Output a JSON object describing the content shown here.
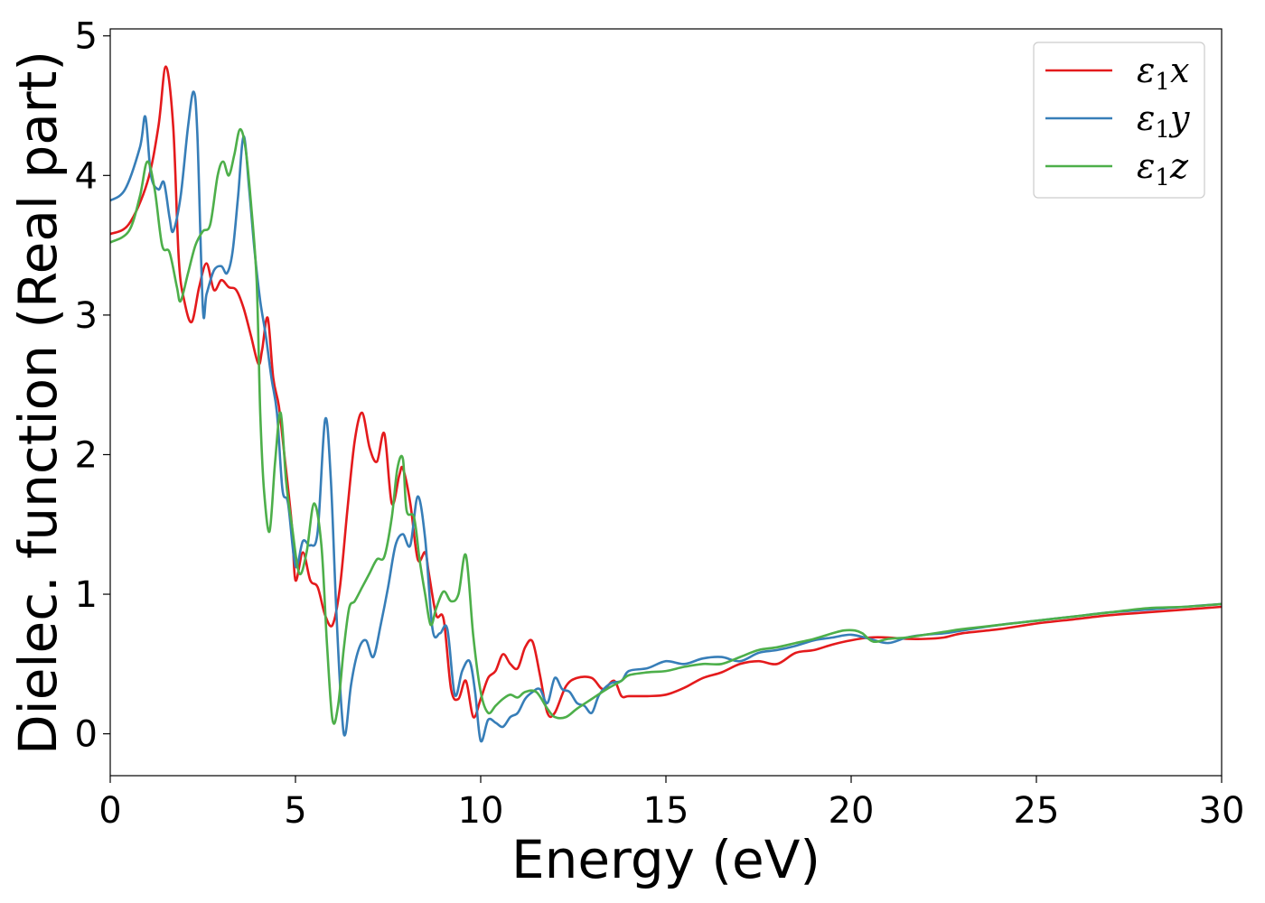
{
  "chart_data": {
    "type": "line",
    "xlabel": "Energy (eV)",
    "ylabel": "Dielec. function (Real part)",
    "xlim": [
      0,
      30
    ],
    "ylim": [
      -0.3,
      5.05
    ],
    "xticks": [
      0,
      5,
      10,
      15,
      20,
      25,
      30
    ],
    "yticks": [
      0,
      1,
      2,
      3,
      4,
      5
    ],
    "grid": false,
    "legend_position": "top-right",
    "series": [
      {
        "name": "ε1x",
        "legend": {
          "sym": "ε",
          "sub": "1",
          "var": "x"
        },
        "color": "#e41a1c",
        "x": [
          0,
          0.5,
          1.0,
          1.3,
          1.5,
          1.7,
          1.85,
          2.0,
          2.2,
          2.4,
          2.6,
          2.8,
          3.0,
          3.2,
          3.4,
          3.6,
          3.8,
          4.0,
          4.1,
          4.25,
          4.4,
          4.55,
          4.7,
          4.9,
          5.0,
          5.2,
          5.4,
          5.6,
          5.8,
          6.0,
          6.2,
          6.4,
          6.6,
          6.8,
          7.0,
          7.2,
          7.4,
          7.6,
          7.8,
          7.9,
          8.1,
          8.3,
          8.5,
          8.6,
          8.8,
          9.0,
          9.2,
          9.4,
          9.6,
          9.8,
          10.0,
          10.2,
          10.4,
          10.6,
          10.8,
          11.0,
          11.2,
          11.4,
          11.6,
          11.8,
          12.0,
          12.3,
          12.6,
          13.0,
          13.3,
          13.6,
          13.8,
          14.0,
          14.5,
          15.0,
          15.5,
          16.0,
          16.5,
          17.0,
          17.5,
          18.0,
          18.5,
          19.0,
          19.5,
          20.0,
          20.5,
          21.0,
          21.5,
          22.0,
          22.5,
          23.0,
          24.0,
          25.0,
          26.0,
          27.0,
          28.0,
          29.0,
          30.0
        ],
        "values": [
          3.58,
          3.65,
          3.95,
          4.35,
          4.78,
          4.35,
          3.4,
          3.1,
          2.95,
          3.2,
          3.37,
          3.18,
          3.25,
          3.2,
          3.18,
          3.05,
          2.85,
          2.65,
          2.75,
          2.98,
          2.55,
          2.35,
          2.0,
          1.5,
          1.1,
          1.3,
          1.1,
          1.05,
          0.85,
          0.78,
          1.05,
          1.6,
          2.1,
          2.3,
          2.05,
          1.95,
          2.15,
          1.65,
          1.85,
          1.9,
          1.65,
          1.25,
          1.3,
          1.15,
          0.85,
          0.82,
          0.32,
          0.25,
          0.38,
          0.12,
          0.25,
          0.4,
          0.45,
          0.57,
          0.5,
          0.47,
          0.62,
          0.66,
          0.42,
          0.15,
          0.15,
          0.34,
          0.4,
          0.4,
          0.32,
          0.38,
          0.27,
          0.27,
          0.27,
          0.28,
          0.33,
          0.4,
          0.44,
          0.5,
          0.52,
          0.5,
          0.58,
          0.6,
          0.64,
          0.67,
          0.69,
          0.69,
          0.68,
          0.68,
          0.69,
          0.72,
          0.75,
          0.79,
          0.82,
          0.85,
          0.87,
          0.89,
          0.91
        ]
      },
      {
        "name": "ε1y",
        "legend": {
          "sym": "ε",
          "sub": "1",
          "var": "y"
        },
        "color": "#377eb8",
        "x": [
          0,
          0.4,
          0.8,
          0.95,
          1.1,
          1.3,
          1.45,
          1.6,
          1.7,
          1.9,
          2.1,
          2.25,
          2.35,
          2.5,
          2.6,
          2.8,
          3.0,
          3.15,
          3.3,
          3.45,
          3.6,
          3.75,
          3.9,
          4.05,
          4.2,
          4.35,
          4.5,
          4.65,
          4.8,
          5.0,
          5.2,
          5.4,
          5.6,
          5.8,
          5.95,
          6.1,
          6.25,
          6.35,
          6.5,
          6.7,
          6.9,
          7.1,
          7.3,
          7.5,
          7.7,
          7.9,
          8.1,
          8.3,
          8.5,
          8.7,
          8.9,
          9.1,
          9.3,
          9.5,
          9.7,
          9.85,
          10.0,
          10.2,
          10.4,
          10.6,
          10.8,
          11.0,
          11.2,
          11.4,
          11.6,
          11.8,
          12.0,
          12.2,
          12.4,
          12.6,
          12.8,
          13.0,
          13.2,
          13.5,
          13.8,
          14.0,
          14.5,
          15.0,
          15.5,
          16.0,
          16.5,
          17.0,
          17.5,
          18.0,
          18.5,
          19.0,
          19.5,
          20.0,
          20.5,
          21.0,
          21.5,
          22.0,
          22.5,
          23.0,
          24.0,
          25.0,
          26.0,
          27.0,
          28.0,
          29.0,
          30.0
        ],
        "values": [
          3.82,
          3.9,
          4.2,
          4.42,
          4.0,
          3.9,
          3.95,
          3.7,
          3.6,
          3.85,
          4.35,
          4.6,
          4.3,
          3.05,
          3.15,
          3.32,
          3.35,
          3.3,
          3.45,
          3.85,
          4.28,
          3.9,
          3.45,
          3.1,
          2.85,
          2.55,
          2.3,
          1.75,
          1.65,
          1.2,
          1.38,
          1.35,
          1.45,
          2.25,
          1.85,
          0.9,
          0.15,
          0.0,
          0.35,
          0.6,
          0.67,
          0.55,
          0.78,
          1.05,
          1.35,
          1.43,
          1.35,
          1.7,
          1.4,
          0.75,
          0.72,
          0.75,
          0.28,
          0.45,
          0.52,
          0.3,
          -0.05,
          0.1,
          0.08,
          0.05,
          0.12,
          0.15,
          0.25,
          0.3,
          0.32,
          0.22,
          0.4,
          0.32,
          0.3,
          0.22,
          0.2,
          0.15,
          0.28,
          0.36,
          0.38,
          0.45,
          0.47,
          0.52,
          0.5,
          0.54,
          0.55,
          0.52,
          0.58,
          0.6,
          0.63,
          0.67,
          0.69,
          0.71,
          0.68,
          0.65,
          0.69,
          0.71,
          0.72,
          0.74,
          0.78,
          0.81,
          0.84,
          0.87,
          0.89,
          0.91,
          0.93
        ]
      },
      {
        "name": "ε1z",
        "legend": {
          "sym": "ε",
          "sub": "1",
          "var": "z"
        },
        "color": "#4daf4a",
        "x": [
          0,
          0.5,
          0.8,
          1.0,
          1.2,
          1.4,
          1.6,
          1.8,
          1.9,
          2.1,
          2.3,
          2.5,
          2.7,
          2.9,
          3.05,
          3.2,
          3.35,
          3.5,
          3.65,
          3.8,
          3.95,
          4.05,
          4.15,
          4.3,
          4.45,
          4.6,
          4.75,
          4.9,
          5.1,
          5.3,
          5.5,
          5.7,
          5.85,
          6.0,
          6.15,
          6.3,
          6.45,
          6.6,
          6.8,
          7.0,
          7.2,
          7.4,
          7.6,
          7.75,
          7.9,
          8.0,
          8.2,
          8.35,
          8.5,
          8.65,
          8.8,
          9.0,
          9.2,
          9.4,
          9.6,
          9.8,
          10.0,
          10.2,
          10.4,
          10.6,
          10.8,
          11.0,
          11.2,
          11.5,
          11.8,
          12.0,
          12.3,
          12.6,
          13.0,
          13.4,
          13.8,
          14.0,
          14.5,
          15.0,
          15.5,
          16.0,
          16.5,
          17.0,
          17.5,
          18.0,
          18.5,
          19.0,
          19.5,
          19.8,
          20.1,
          20.3,
          20.6,
          21.0,
          21.5,
          22.0,
          22.5,
          23.0,
          24.0,
          25.0,
          26.0,
          27.0,
          28.0,
          29.0,
          30.0
        ],
        "values": [
          3.52,
          3.6,
          3.85,
          4.1,
          3.9,
          3.5,
          3.45,
          3.2,
          3.1,
          3.3,
          3.5,
          3.6,
          3.65,
          4.0,
          4.1,
          4.0,
          4.15,
          4.33,
          4.2,
          3.8,
          3.25,
          2.3,
          1.75,
          1.45,
          1.95,
          2.3,
          1.8,
          1.5,
          1.15,
          1.3,
          1.65,
          1.35,
          0.65,
          0.1,
          0.2,
          0.6,
          0.9,
          0.95,
          1.05,
          1.15,
          1.25,
          1.27,
          1.55,
          1.9,
          1.97,
          1.6,
          1.55,
          1.25,
          1.0,
          0.78,
          0.9,
          1.02,
          0.95,
          1.0,
          1.28,
          0.7,
          0.3,
          0.15,
          0.2,
          0.25,
          0.28,
          0.26,
          0.3,
          0.3,
          0.18,
          0.12,
          0.12,
          0.18,
          0.25,
          0.32,
          0.38,
          0.42,
          0.44,
          0.45,
          0.48,
          0.5,
          0.5,
          0.55,
          0.6,
          0.62,
          0.65,
          0.68,
          0.72,
          0.74,
          0.74,
          0.72,
          0.66,
          0.68,
          0.69,
          0.71,
          0.73,
          0.75,
          0.78,
          0.81,
          0.84,
          0.87,
          0.9,
          0.91,
          0.93
        ]
      }
    ]
  }
}
